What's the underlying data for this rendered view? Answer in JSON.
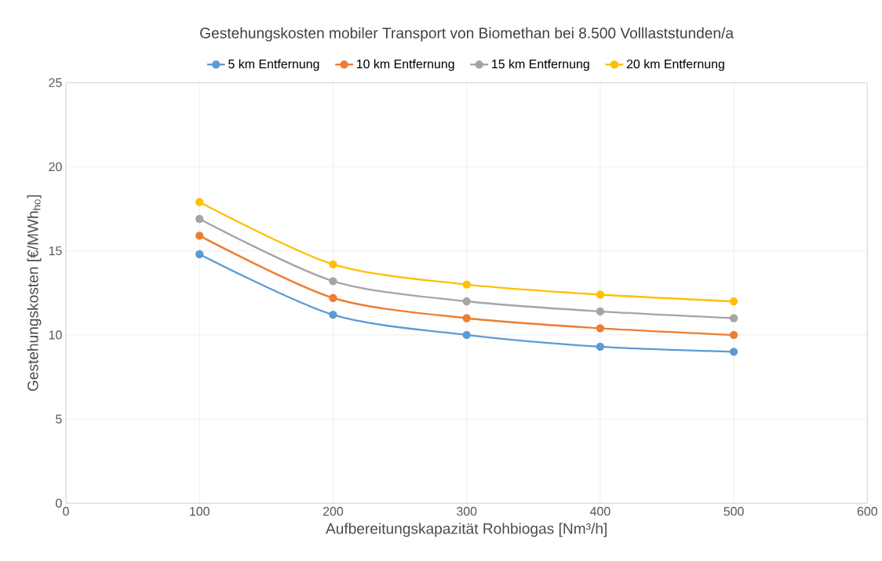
{
  "chart_data": {
    "type": "line",
    "title": "Gestehungskosten mobiler Transport von Biomethan bei 8.500 Volllaststunden/a",
    "xlabel": "Aufbereitungskapazität Rohbiogas [Nm³/h]",
    "ylabel": "Gestehungskosten [€/MWh$_{ho}$]",
    "x": [
      100,
      200,
      300,
      400,
      500
    ],
    "series": [
      {
        "name": "5 km Entfernung",
        "color": "#5b9bd5",
        "values": [
          14.8,
          11.2,
          10.0,
          9.3,
          9.0
        ]
      },
      {
        "name": "10 km Entfernung",
        "color": "#ed7d31",
        "values": [
          15.9,
          12.2,
          11.0,
          10.4,
          10.0
        ]
      },
      {
        "name": "15 km Entfernung",
        "color": "#a5a5a5",
        "values": [
          16.9,
          13.2,
          12.0,
          11.4,
          11.0
        ]
      },
      {
        "name": "20 km Entfernung",
        "color": "#ffc000",
        "values": [
          17.9,
          14.2,
          13.0,
          12.4,
          12.0
        ]
      }
    ],
    "xlim": [
      0,
      600
    ],
    "ylim": [
      0,
      25
    ],
    "xticks": [
      0,
      100,
      200,
      300,
      400,
      500,
      600
    ],
    "yticks": [
      0,
      5,
      10,
      15,
      20,
      25
    ],
    "grid": true,
    "legend": "top",
    "marker": "circle",
    "line_style": "solid"
  }
}
